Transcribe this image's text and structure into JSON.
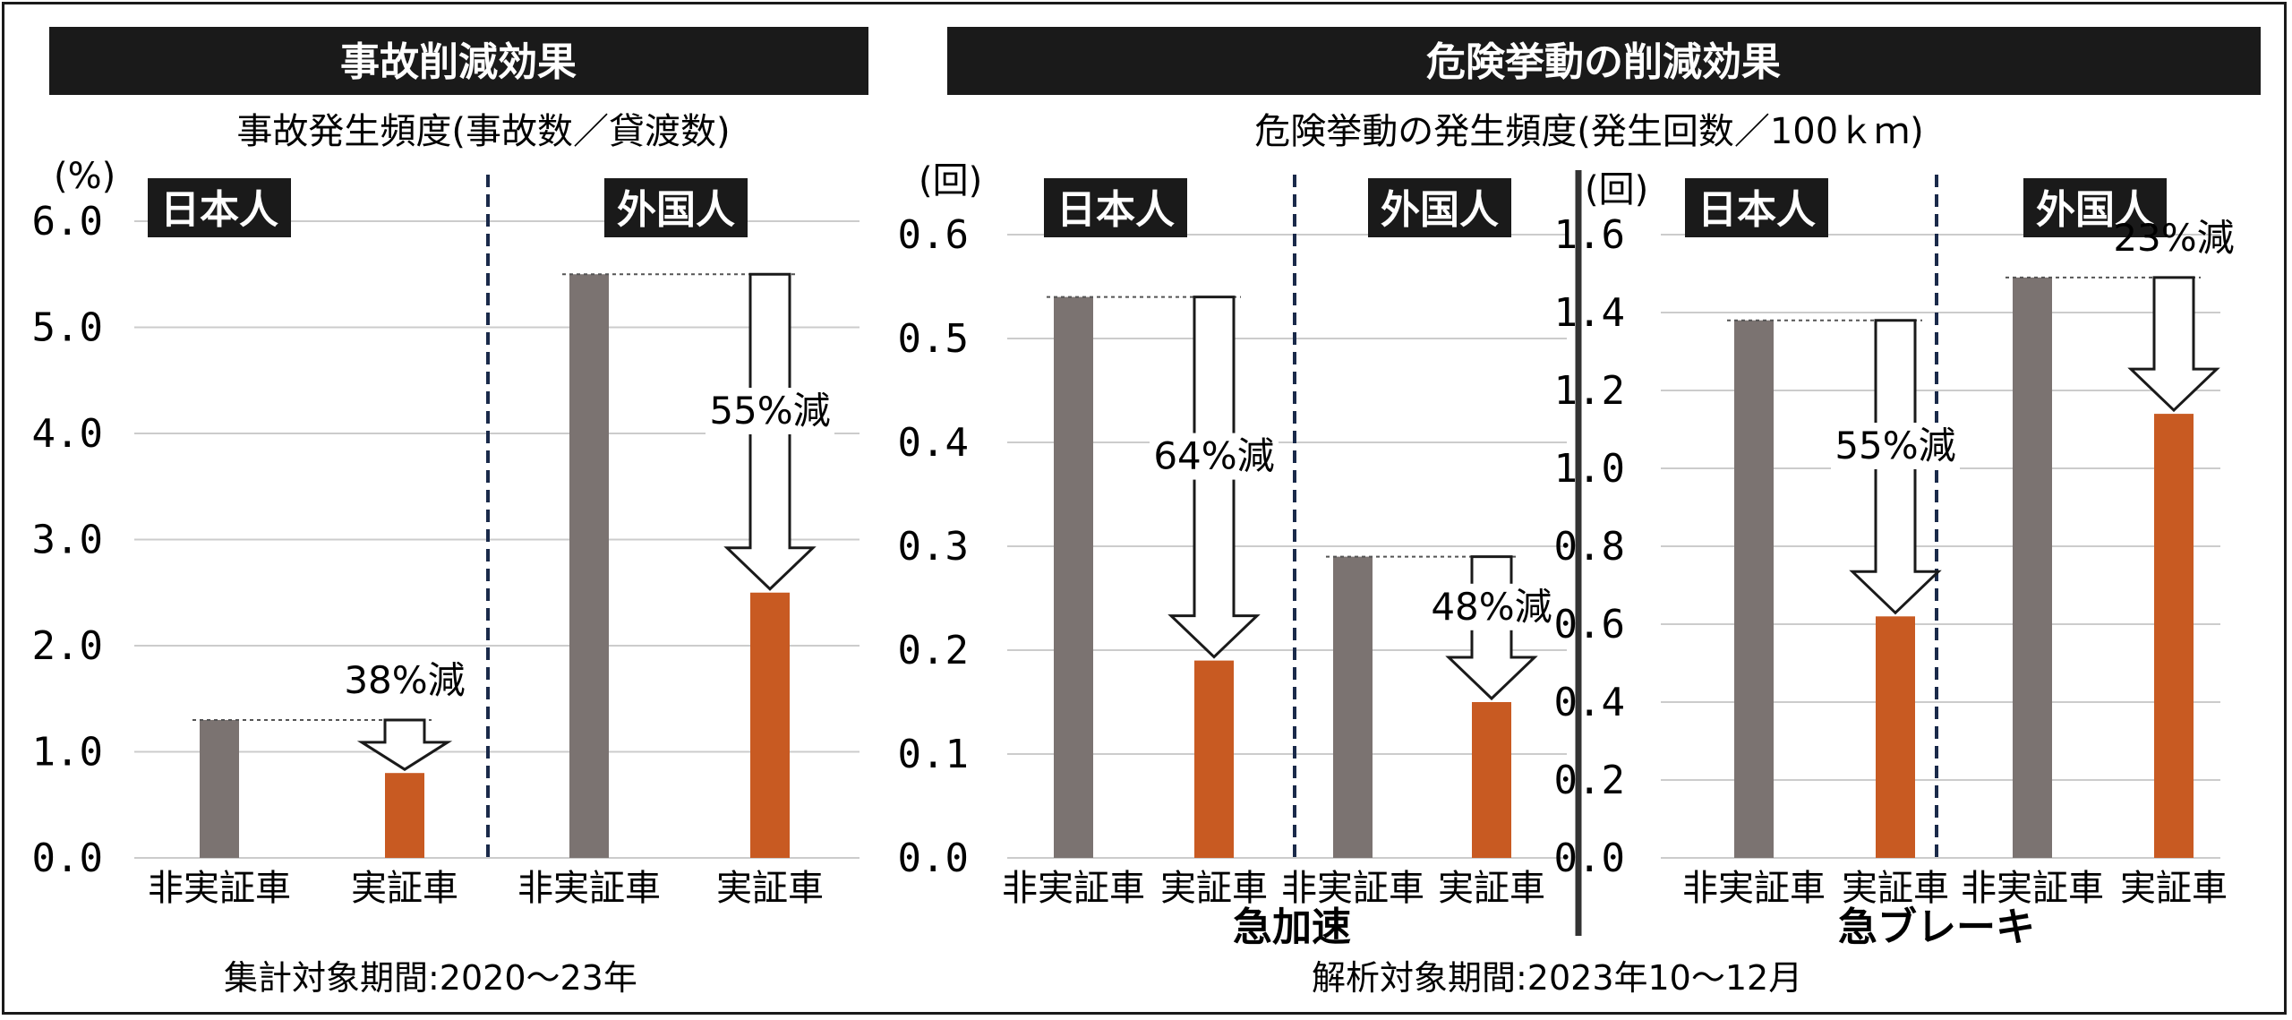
{
  "colors": {
    "gray": "#7b7371",
    "orange": "#c85a22",
    "header_bg": "#1a1a1a",
    "grid": "#cccccc"
  },
  "left": {
    "header": "事故削減効果",
    "subtitle": "事故発生頻度(事故数／貸渡数)",
    "unit": "(%)",
    "footnote": "集計対象期間:2020〜23年"
  },
  "right": {
    "header": "危険挙動の削減効果",
    "subtitle": "危険挙動の発生頻度(発生回数／100ｋｍ)",
    "unit_a": "(回)",
    "unit_b": "(回)",
    "label_a": "急加速",
    "label_b": "急ブレーキ",
    "footnote": "解析対象期間:2023年10〜12月"
  },
  "chart_data": [
    {
      "type": "bar",
      "title": "事故発生頻度(事故数／貸渡数)",
      "ylabel": "(%)",
      "ylim": [
        0,
        6
      ],
      "yticks": [
        "0.0",
        "1.0",
        "2.0",
        "3.0",
        "4.0",
        "5.0",
        "6.0"
      ],
      "groups": [
        {
          "name": "日本人",
          "categories": [
            "非実証車",
            "実証車"
          ],
          "values": [
            1.3,
            0.8
          ],
          "reduction": "38%減"
        },
        {
          "name": "外国人",
          "categories": [
            "非実証車",
            "実証車"
          ],
          "values": [
            5.5,
            2.5
          ],
          "reduction": "55%減"
        }
      ]
    },
    {
      "type": "bar",
      "title": "急加速",
      "ylabel": "(回)",
      "ylim": [
        0,
        0.6
      ],
      "yticks": [
        "0.0",
        "0.1",
        "0.2",
        "0.3",
        "0.4",
        "0.5",
        "0.6"
      ],
      "groups": [
        {
          "name": "日本人",
          "categories": [
            "非実証車",
            "実証車"
          ],
          "values": [
            0.54,
            0.19
          ],
          "reduction": "64%減"
        },
        {
          "name": "外国人",
          "categories": [
            "非実証車",
            "実証車"
          ],
          "values": [
            0.29,
            0.15
          ],
          "reduction": "48%減"
        }
      ]
    },
    {
      "type": "bar",
      "title": "急ブレーキ",
      "ylabel": "(回)",
      "ylim": [
        0,
        1.6
      ],
      "yticks": [
        "0.0",
        "0.2",
        "0.4",
        "0.6",
        "0.8",
        "1.0",
        "1.2",
        "1.4",
        "1.6"
      ],
      "groups": [
        {
          "name": "日本人",
          "categories": [
            "非実証車",
            "実証車"
          ],
          "values": [
            1.38,
            0.62
          ],
          "reduction": "55%減"
        },
        {
          "name": "外国人",
          "categories": [
            "非実証車",
            "実証車"
          ],
          "values": [
            1.49,
            1.14
          ],
          "reduction": "23%減"
        }
      ]
    }
  ]
}
